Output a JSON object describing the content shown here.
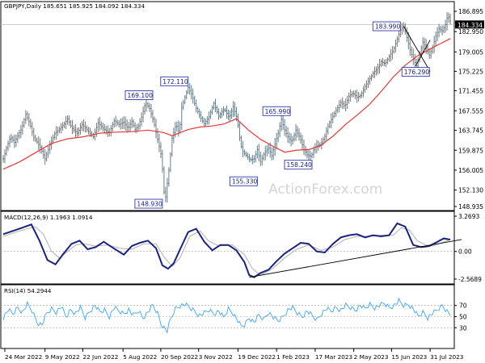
{
  "chart_data": {
    "type": "line",
    "panels": [
      {
        "id": "price",
        "kind": "candlestick",
        "header": "GBPJPY,Daily  185.651 185.925 184.092 184.334",
        "watermark": "ActionForex.com",
        "ylim": [
          148.935,
          188.0
        ],
        "y_ticks": [
          "186.895",
          "182.950",
          "179.005",
          "175.225",
          "171.455",
          "167.555",
          "163.745",
          "159.875",
          "156.005",
          "152.130",
          "148.935"
        ],
        "current_price": "184.334",
        "price_series_x": [
          0,
          4,
          9,
          14,
          19,
          23,
          28,
          33,
          38,
          45,
          52,
          58,
          64,
          70,
          76,
          80,
          85,
          92,
          98,
          105,
          112,
          118,
          125,
          132,
          138,
          144,
          150,
          155,
          160,
          164,
          168,
          172,
          177,
          182,
          187,
          192,
          197,
          201,
          206,
          210,
          215,
          219,
          222,
          226,
          230,
          235,
          240,
          245,
          250,
          256,
          262,
          268,
          275,
          281,
          286,
          291,
          295,
          298,
          302,
          307,
          312,
          316,
          320,
          325,
          330,
          334,
          338,
          342,
          346,
          350,
          354,
          359,
          364,
          369,
          374,
          378,
          383,
          387,
          391,
          395,
          400,
          405,
          410,
          415,
          420,
          425,
          430,
          435,
          440,
          445,
          450,
          455,
          460,
          465,
          470,
          475,
          480,
          485,
          490,
          494,
          498,
          502,
          506,
          510,
          514,
          518,
          522,
          526,
          530,
          534,
          538,
          542,
          546,
          550,
          553,
          556
        ],
        "price_series_y": [
          158.2,
          160.3,
          162.5,
          161.4,
          163.0,
          164.1,
          166.9,
          165.1,
          162.4,
          160.8,
          158.2,
          160.9,
          163.1,
          164.0,
          165.0,
          166.0,
          164.3,
          163.2,
          164.9,
          163.7,
          162.5,
          165.2,
          164.0,
          163.3,
          165.6,
          164.9,
          165.3,
          164.1,
          165.5,
          163.9,
          164.6,
          166.3,
          169.1,
          168.0,
          165.5,
          162.0,
          158.5,
          149.5,
          156.0,
          162.2,
          165.0,
          163.2,
          168.2,
          170.2,
          172.11,
          170.5,
          168.0,
          166.4,
          165.0,
          166.4,
          169.0,
          166.5,
          167.9,
          166.2,
          168.3,
          166.0,
          161.1,
          159.6,
          158.9,
          158.0,
          158.2,
          160.0,
          157.6,
          159.4,
          160.3,
          158.8,
          161.1,
          163.2,
          165.9,
          163.8,
          162.5,
          161.5,
          163.8,
          162.3,
          160.0,
          159.0,
          158.6,
          160.4,
          160.8,
          161.0,
          162.6,
          165.0,
          166.5,
          167.9,
          169.2,
          168.4,
          170.4,
          171.0,
          170.2,
          170.6,
          172.3,
          173.5,
          174.9,
          175.6,
          177.1,
          176.7,
          178.1,
          179.3,
          181.5,
          183.3,
          184.0,
          181.8,
          179.4,
          177.6,
          176.3,
          178.7,
          180.9,
          179.8,
          178.3,
          179.9,
          182.1,
          183.5,
          183.1,
          184.3,
          186.2,
          185.0
        ],
        "ma_series_x": [
          0,
          20,
          40,
          60,
          80,
          100,
          120,
          140,
          160,
          180,
          200,
          210,
          220,
          230,
          245,
          260,
          275,
          290,
          305,
          320,
          335,
          350,
          365,
          380,
          395,
          410,
          425,
          440,
          455,
          470,
          485,
          500,
          515,
          530,
          545,
          556
        ],
        "ma_series_y": [
          156.2,
          157.6,
          159.4,
          161.2,
          162.1,
          162.5,
          163.2,
          163.4,
          163.5,
          163.8,
          163.3,
          162.7,
          163.3,
          163.9,
          164.4,
          164.6,
          165.0,
          166.0,
          163.8,
          162.0,
          160.7,
          159.5,
          159.9,
          160.0,
          160.8,
          162.6,
          164.8,
          166.7,
          168.7,
          171.3,
          174.1,
          176.4,
          178.2,
          179.5,
          180.7,
          181.6
        ],
        "wedge_lines": [
          {
            "from": [
              498,
              184.0
            ],
            "to": [
              531,
              175.2
            ]
          },
          {
            "from": [
              513,
              176.3
            ],
            "to": [
              531,
              181.3
            ]
          }
        ],
        "annotations": [
          {
            "label": "148.930",
            "x": 202,
            "y": 148.93
          },
          {
            "label": "169.100",
            "x": 184,
            "y": 169.1
          },
          {
            "label": "172.110",
            "x": 230,
            "y": 172.11
          },
          {
            "label": "155.330",
            "x": 299,
            "y": 155.33
          },
          {
            "label": "165.990",
            "x": 346,
            "y": 165.99
          },
          {
            "label": "158.240",
            "x": 371,
            "y": 158.24
          },
          {
            "label": "183.990",
            "x": 498,
            "y": 183.99
          },
          {
            "label": "176.290",
            "x": 513,
            "y": 176.29
          }
        ]
      },
      {
        "id": "macd",
        "kind": "line",
        "header": "MACD(12,26,9) 1.1963 1.0914",
        "ylim": [
          -2.5689,
          3.2693
        ],
        "y_ticks": [
          "3.2693",
          "0.00",
          "-2.5689"
        ],
        "series": [
          {
            "color": "#1a237e",
            "x": [
              0,
              20,
              35,
              45,
              55,
              65,
              75,
              85,
              95,
              105,
              115,
              125,
              135,
              150,
              160,
              170,
              180,
              190,
              198,
              205,
              212,
              220,
              230,
              240,
              250,
              260,
              270,
              280,
              290,
              300,
              306,
              312,
              320,
              330,
              340,
              350,
              360,
              370,
              380,
              390,
              400,
              410,
              420,
              430,
              440,
              450,
              460,
              470,
              480,
              490,
              500,
              510,
              520,
              530,
              540,
              548,
              556
            ],
            "y": [
              1.6,
              2.1,
              2.5,
              1.0,
              -0.8,
              -1.2,
              -0.2,
              0.7,
              1.0,
              0.2,
              0.4,
              0.9,
              0.4,
              -0.3,
              0.5,
              0.8,
              1.0,
              0.3,
              -1.3,
              -1.6,
              -1.1,
              0.2,
              1.8,
              2.1,
              0.9,
              0.1,
              0.6,
              0.6,
              0.1,
              -1.0,
              -2.2,
              -2.4,
              -2.0,
              -1.7,
              -0.9,
              -0.2,
              0.3,
              0.8,
              0.7,
              0.0,
              -0.1,
              0.7,
              1.3,
              1.5,
              1.6,
              1.3,
              1.5,
              1.4,
              1.5,
              2.6,
              2.3,
              0.6,
              0.4,
              0.5,
              0.9,
              1.2,
              1.1
            ]
          },
          {
            "color": "#b0b0b0",
            "x": [
              0,
              20,
              40,
              50,
              60,
              70,
              80,
              90,
              100,
              115,
              130,
              145,
              160,
              175,
              190,
              200,
              210,
              220,
              232,
              245,
              255,
              268,
              285,
              300,
              310,
              320,
              335,
              350,
              365,
              380,
              395,
              410,
              425,
              440,
              455,
              470,
              485,
              495,
              505,
              515,
              525,
              535,
              545,
              556
            ],
            "y": [
              1.4,
              1.9,
              2.3,
              1.6,
              0.0,
              -0.6,
              0.0,
              0.6,
              0.7,
              0.5,
              0.6,
              0.3,
              0.2,
              0.7,
              0.7,
              -0.5,
              -1.4,
              -0.6,
              1.4,
              1.9,
              1.0,
              0.5,
              0.6,
              -0.3,
              -1.6,
              -2.2,
              -1.6,
              -0.6,
              0.2,
              0.6,
              0.1,
              0.4,
              1.1,
              1.4,
              1.4,
              1.5,
              1.5,
              2.2,
              2.0,
              1.0,
              0.6,
              0.5,
              0.8,
              1.09
            ]
          }
        ],
        "trendline": {
          "from": [
            306,
            -2.4
          ],
          "to": [
            566,
            1.1
          ]
        }
      },
      {
        "id": "rsi",
        "kind": "line",
        "header": "RSI(14) 54.2944",
        "ylim": [
          0,
          100
        ],
        "y_ticks": [
          "70",
          "50",
          "30"
        ],
        "series": [
          {
            "color": "#42a5f5",
            "x": [
              0,
              6,
              12,
              18,
              24,
              30,
              36,
              42,
              48,
              54,
              60,
              66,
              72,
              78,
              84,
              90,
              96,
              102,
              108,
              114,
              120,
              126,
              132,
              138,
              144,
              150,
              156,
              162,
              168,
              174,
              180,
              186,
              192,
              196,
              200,
              204,
              208,
              214,
              220,
              226,
              232,
              238,
              244,
              250,
              256,
              262,
              268,
              274,
              280,
              286,
              292,
              296,
              300,
              306,
              312,
              318,
              324,
              330,
              336,
              342,
              348,
              354,
              360,
              366,
              372,
              378,
              384,
              390,
              396,
              402,
              408,
              414,
              420,
              426,
              432,
              438,
              444,
              450,
              456,
              462,
              468,
              474,
              480,
              486,
              492,
              498,
              504,
              510,
              516,
              522,
              528,
              534,
              540,
              546,
              552,
              556
            ],
            "y": [
              48,
              62,
              55,
              66,
              58,
              72,
              60,
              40,
              35,
              55,
              64,
              58,
              68,
              50,
              62,
              56,
              66,
              48,
              60,
              70,
              58,
              62,
              50,
              66,
              60,
              55,
              63,
              52,
              60,
              48,
              58,
              70,
              56,
              38,
              30,
              24,
              45,
              64,
              70,
              72,
              66,
              60,
              52,
              56,
              62,
              55,
              60,
              48,
              64,
              56,
              42,
              32,
              35,
              48,
              40,
              52,
              45,
              58,
              48,
              42,
              50,
              62,
              66,
              56,
              50,
              60,
              52,
              44,
              56,
              64,
              60,
              66,
              62,
              70,
              66,
              62,
              70,
              64,
              72,
              66,
              70,
              74,
              66,
              70,
              78,
              70,
              72,
              64,
              50,
              58,
              48,
              56,
              62,
              70,
              60,
              54.29
            ]
          }
        ],
        "levels": [
          70,
          50,
          30
        ]
      }
    ],
    "x_ticks": [
      "24 Mar 2022",
      "9 May 2022",
      "22 Jun 2022",
      "5 Aug 2022",
      "20 Sep 2022",
      "3 Nov 2022",
      "19 Dec 2022",
      "1 Feb 2023",
      "17 Mar 2023",
      "2 May 2023",
      "15 Jun 2023",
      "31 Jul 2023"
    ]
  }
}
